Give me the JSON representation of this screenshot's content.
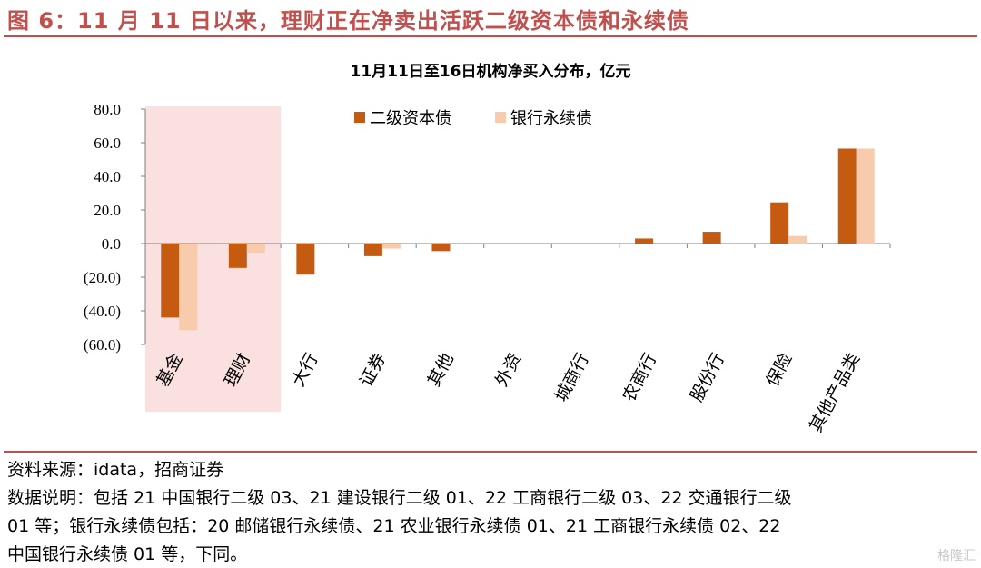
{
  "header": {
    "figure_title": "图 6：11 月 11 日以来，理财正在净卖出活跃二级资本债和永续债"
  },
  "chart_data": {
    "type": "bar",
    "title": "11月11日至16日机构净买入分布，亿元",
    "xlabel": "",
    "ylabel": "",
    "categories": [
      "基金",
      "理财",
      "大行",
      "证券",
      "其他",
      "外资",
      "城商行",
      "农商行",
      "股份行",
      "保险",
      "其他产品类"
    ],
    "series": [
      {
        "name": "二级资本债",
        "color": "#c55a11",
        "values": [
          -44.0,
          -14.5,
          -18.5,
          -7.5,
          -4.5,
          0,
          0,
          3.0,
          7.0,
          24.5,
          56.5
        ]
      },
      {
        "name": "银行永续债",
        "color": "#f8cbad",
        "values": [
          -51.5,
          -5.5,
          0,
          -3.0,
          0,
          0,
          0,
          0,
          0,
          4.5,
          56.5
        ]
      }
    ],
    "yticks": [
      "80.0",
      "60.0",
      "40.0",
      "20.0",
      "0.0",
      "(20.0)",
      "(40.0)",
      "(60.0)"
    ],
    "ylim": [
      -60,
      80
    ],
    "highlight_categories": [
      "基金",
      "理财"
    ],
    "highlight_color": "#fbe0e0",
    "legend_position": "top-center",
    "grid": false
  },
  "footer": {
    "source": "资料来源：idata，招商证券",
    "notes_line1": "数据说明：包括 21 中国银行二级 03、21 建设银行二级 01、22 工商银行二级 03、22 交通银行二级",
    "notes_line2": "01 等；银行永续债包括：20 邮储银行永续债、21 农业银行永续债 01、21 工商银行永续债 02、22",
    "notes_line3": "中国银行永续债 01 等，下同。"
  },
  "watermark": "格隆汇"
}
